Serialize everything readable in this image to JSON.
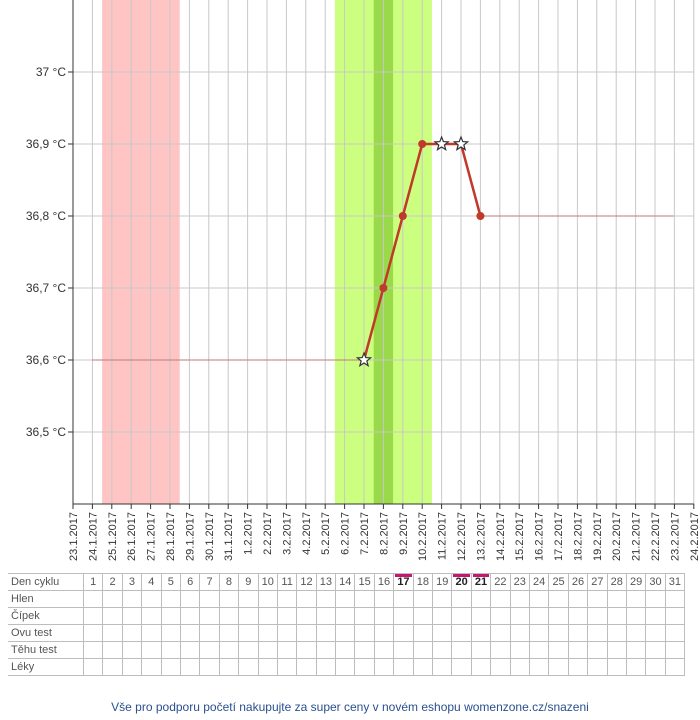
{
  "chart_data": {
    "type": "line",
    "title": "",
    "xlabel": "",
    "ylabel": "",
    "x": [
      "23.1.2017",
      "24.1.2017",
      "25.1.2017",
      "26.1.2017",
      "27.1.2017",
      "28.1.2017",
      "29.1.2017",
      "30.1.2017",
      "31.1.2017",
      "1.2.2017",
      "2.2.2017",
      "3.2.2017",
      "4.2.2017",
      "5.2.2017",
      "6.2.2017",
      "7.2.2017",
      "8.2.2017",
      "9.2.2017",
      "10.2.2017",
      "11.2.2017",
      "12.2.2017",
      "13.2.2017",
      "14.2.2017",
      "15.2.2017",
      "16.2.2017",
      "17.2.2017",
      "18.2.2017",
      "19.2.2017",
      "20.2.2017",
      "21.2.2017",
      "22.2.2017",
      "23.2.2017",
      "24.2.2017"
    ],
    "ylim": [
      36.4,
      37.1
    ],
    "yticks": [
      36.5,
      36.6,
      36.7,
      36.8,
      36.9,
      37.0
    ],
    "ytick_labels": [
      "36,5 °C",
      "36,6 °C",
      "36,7 °C",
      "36,8 °C",
      "36,9 °C",
      "37 °C"
    ],
    "series": [
      {
        "points": [
          {
            "x": "7.2.2017",
            "y": 36.6,
            "marker": "star"
          },
          {
            "x": "8.2.2017",
            "y": 36.7,
            "marker": "dot"
          },
          {
            "x": "9.2.2017",
            "y": 36.8,
            "marker": "dot"
          },
          {
            "x": "10.2.2017",
            "y": 36.9,
            "marker": "dot"
          },
          {
            "x": "11.2.2017",
            "y": 36.9,
            "marker": "star"
          },
          {
            "x": "12.2.2017",
            "y": 36.9,
            "marker": "star"
          },
          {
            "x": "13.2.2017",
            "y": 36.8,
            "marker": "dot"
          }
        ],
        "color": "#c0392b"
      }
    ],
    "baselines": [
      {
        "from": "24.1.2017",
        "to": "7.2.2017",
        "y": 36.6
      },
      {
        "from": "13.2.2017",
        "to": "23.2.2017",
        "y": 36.8
      }
    ],
    "bands": [
      {
        "from": "24.1.2017",
        "to": "27.1.2017",
        "color": "#ffc4c4",
        "meaning": "menstruation"
      },
      {
        "from": "5.2.2017",
        "to": "9.2.2017",
        "color": "#ccff80",
        "meaning": "fertile window"
      },
      {
        "from": "7.2.2017",
        "to": "7.2.2017",
        "color": "#9ad94a",
        "meaning": "ovulation"
      }
    ],
    "grid": true
  },
  "table": {
    "row_labels": [
      "Den cyklu",
      "Hlen",
      "Čípek",
      "Ovu test",
      "Těhu test",
      "Léky"
    ],
    "cycle_days": [
      "1",
      "2",
      "3",
      "4",
      "5",
      "6",
      "7",
      "8",
      "9",
      "10",
      "11",
      "12",
      "13",
      "14",
      "15",
      "16",
      "17",
      "18",
      "19",
      "20",
      "21",
      "22",
      "23",
      "24",
      "25",
      "26",
      "27",
      "28",
      "29",
      "30",
      "31"
    ],
    "highlighted_days": [
      "17",
      "20",
      "21"
    ],
    "highlight_color": "#c2186f"
  },
  "footer": {
    "promo": "Vše pro podporu početí nakupujte za super ceny v novém eshopu womenzone.cz/snazeni"
  }
}
